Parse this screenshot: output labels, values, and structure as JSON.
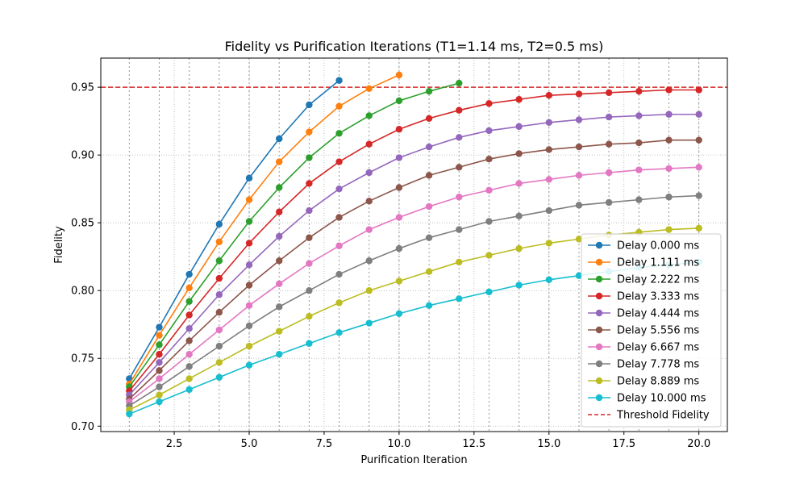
{
  "chart_data": {
    "type": "line",
    "title": "Fidelity vs Purification Iterations (T1=1.14 ms, T2=0.5 ms)",
    "xlabel": "Purification Iteration",
    "ylabel": "Fidelity",
    "xlim": [
      0.05,
      20.95
    ],
    "ylim": [
      0.696,
      0.9715
    ],
    "xticks": [
      2.5,
      5.0,
      7.5,
      10.0,
      12.5,
      15.0,
      17.5,
      20.0
    ],
    "xtick_labels": [
      "2.5",
      "5.0",
      "7.5",
      "10.0",
      "12.5",
      "15.0",
      "17.5",
      "20.0"
    ],
    "yticks": [
      0.7,
      0.75,
      0.8,
      0.85,
      0.9,
      0.95
    ],
    "ytick_labels": [
      "0.70",
      "0.75",
      "0.80",
      "0.85",
      "0.90",
      "0.95"
    ],
    "grid": true,
    "vertical_dotted_lines_at_integers": [
      1,
      20
    ],
    "legend_position": "lower right",
    "threshold": {
      "name": "Threshold Fidelity",
      "value": 0.95,
      "color": "#d62728",
      "style": "dashed"
    },
    "series": [
      {
        "name": "Delay 0.000 ms",
        "color": "#1f77b4",
        "x": [
          1,
          2,
          3,
          4,
          5,
          6,
          7,
          8
        ],
        "y": [
          0.735,
          0.773,
          0.812,
          0.849,
          0.883,
          0.912,
          0.937,
          0.955
        ]
      },
      {
        "name": "Delay 1.111 ms",
        "color": "#ff7f0e",
        "x": [
          1,
          2,
          3,
          4,
          5,
          6,
          7,
          8,
          9,
          10
        ],
        "y": [
          0.731,
          0.767,
          0.802,
          0.836,
          0.867,
          0.895,
          0.917,
          0.936,
          0.949,
          0.959
        ]
      },
      {
        "name": "Delay 2.222 ms",
        "color": "#2ca02c",
        "x": [
          1,
          2,
          3,
          4,
          5,
          6,
          7,
          8,
          9,
          10,
          11,
          12
        ],
        "y": [
          0.729,
          0.76,
          0.792,
          0.822,
          0.851,
          0.876,
          0.898,
          0.916,
          0.929,
          0.94,
          0.947,
          0.953
        ]
      },
      {
        "name": "Delay 3.333 ms",
        "color": "#d62728",
        "x": [
          1,
          2,
          3,
          4,
          5,
          6,
          7,
          8,
          9,
          10,
          11,
          12,
          13,
          14,
          15,
          16,
          17,
          18,
          19,
          20
        ],
        "y": [
          0.726,
          0.753,
          0.782,
          0.809,
          0.835,
          0.858,
          0.879,
          0.895,
          0.908,
          0.919,
          0.927,
          0.933,
          0.938,
          0.941,
          0.944,
          0.945,
          0.946,
          0.947,
          0.948,
          0.948
        ]
      },
      {
        "name": "Delay 4.444 ms",
        "color": "#9467bd",
        "x": [
          1,
          2,
          3,
          4,
          5,
          6,
          7,
          8,
          9,
          10,
          11,
          12,
          13,
          14,
          15,
          16,
          17,
          18,
          19,
          20
        ],
        "y": [
          0.723,
          0.747,
          0.772,
          0.797,
          0.819,
          0.84,
          0.859,
          0.875,
          0.887,
          0.898,
          0.906,
          0.913,
          0.918,
          0.921,
          0.924,
          0.926,
          0.928,
          0.929,
          0.93,
          0.93
        ]
      },
      {
        "name": "Delay 5.556 ms",
        "color": "#8c564b",
        "x": [
          1,
          2,
          3,
          4,
          5,
          6,
          7,
          8,
          9,
          10,
          11,
          12,
          13,
          14,
          15,
          16,
          17,
          18,
          19,
          20
        ],
        "y": [
          0.72,
          0.741,
          0.763,
          0.784,
          0.804,
          0.822,
          0.839,
          0.854,
          0.866,
          0.876,
          0.885,
          0.891,
          0.897,
          0.901,
          0.904,
          0.906,
          0.908,
          0.909,
          0.911,
          0.911
        ]
      },
      {
        "name": "Delay 6.667 ms",
        "color": "#e377c2",
        "x": [
          1,
          2,
          3,
          4,
          5,
          6,
          7,
          8,
          9,
          10,
          11,
          12,
          13,
          14,
          15,
          16,
          17,
          18,
          19,
          20
        ],
        "y": [
          0.718,
          0.735,
          0.753,
          0.771,
          0.789,
          0.805,
          0.82,
          0.833,
          0.845,
          0.854,
          0.862,
          0.869,
          0.874,
          0.879,
          0.882,
          0.885,
          0.887,
          0.889,
          0.89,
          0.891
        ]
      },
      {
        "name": "Delay 7.778 ms",
        "color": "#7f7f7f",
        "x": [
          1,
          2,
          3,
          4,
          5,
          6,
          7,
          8,
          9,
          10,
          11,
          12,
          13,
          14,
          15,
          16,
          17,
          18,
          19,
          20
        ],
        "y": [
          0.715,
          0.729,
          0.744,
          0.759,
          0.774,
          0.788,
          0.8,
          0.812,
          0.822,
          0.831,
          0.839,
          0.845,
          0.851,
          0.855,
          0.859,
          0.863,
          0.865,
          0.867,
          0.869,
          0.87
        ]
      },
      {
        "name": "Delay 8.889 ms",
        "color": "#bcbd22",
        "x": [
          1,
          2,
          3,
          4,
          5,
          6,
          7,
          8,
          9,
          10,
          11,
          12,
          13,
          14,
          15,
          16,
          17,
          18,
          19,
          20
        ],
        "y": [
          0.712,
          0.723,
          0.735,
          0.747,
          0.759,
          0.77,
          0.781,
          0.791,
          0.8,
          0.807,
          0.814,
          0.821,
          0.826,
          0.831,
          0.835,
          0.838,
          0.841,
          0.843,
          0.845,
          0.846
        ]
      },
      {
        "name": "Delay 10.000 ms",
        "color": "#17becf",
        "x": [
          1,
          2,
          3,
          4,
          5,
          6,
          7,
          8,
          9,
          10,
          11,
          12,
          13,
          14,
          15,
          16,
          17,
          18,
          19,
          20
        ],
        "y": [
          0.709,
          0.718,
          0.727,
          0.736,
          0.745,
          0.753,
          0.761,
          0.769,
          0.776,
          0.783,
          0.789,
          0.794,
          0.799,
          0.804,
          0.808,
          0.811,
          0.814,
          0.817,
          0.819,
          0.821
        ]
      }
    ]
  }
}
